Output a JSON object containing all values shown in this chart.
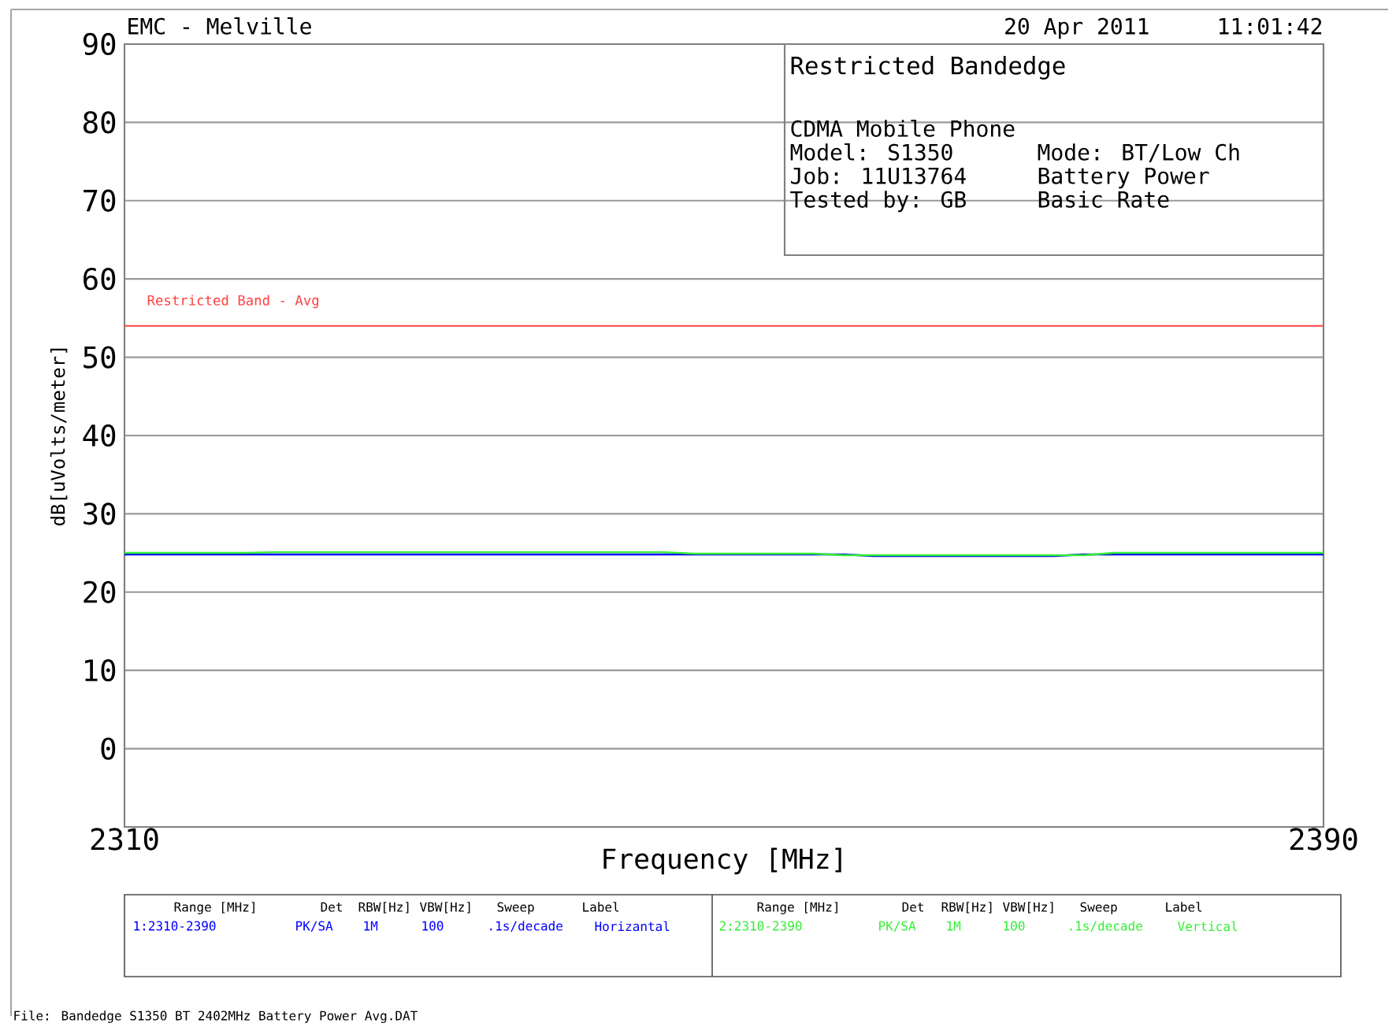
{
  "chart_data": {
    "type": "line",
    "title": "Restricted Bandedge",
    "xlabel": "Frequency [MHz]",
    "ylabel": "dB[uVolts/meter]",
    "x": [
      2310,
      2312,
      2314,
      2316,
      2318,
      2320,
      2322,
      2324,
      2326,
      2328,
      2330,
      2332,
      2334,
      2336,
      2338,
      2340,
      2342,
      2344,
      2346,
      2348,
      2350,
      2352,
      2354,
      2356,
      2358,
      2360,
      2362,
      2364,
      2366,
      2368,
      2370,
      2372,
      2374,
      2376,
      2378,
      2380,
      2382,
      2384,
      2386,
      2388,
      2390
    ],
    "series": [
      {
        "name": "Horizantal",
        "color": "#0000ff",
        "values": [
          24.8,
          24.8,
          24.8,
          24.8,
          24.8,
          24.8,
          24.8,
          24.8,
          24.8,
          24.8,
          24.8,
          24.8,
          24.8,
          24.8,
          24.8,
          24.8,
          24.8,
          24.8,
          24.8,
          24.8,
          24.8,
          24.8,
          24.8,
          24.8,
          24.8,
          24.6,
          24.6,
          24.6,
          24.6,
          24.6,
          24.6,
          24.6,
          24.8,
          24.8,
          24.8,
          24.8,
          24.8,
          24.8,
          24.8,
          24.8,
          24.8
        ]
      },
      {
        "name": "Vertical",
        "color": "#33ee33",
        "values": [
          25.0,
          25.0,
          25.0,
          25.0,
          25.0,
          25.1,
          25.1,
          25.1,
          25.1,
          25.1,
          25.1,
          25.1,
          25.1,
          25.1,
          25.1,
          25.1,
          25.1,
          25.1,
          25.1,
          24.9,
          24.9,
          24.9,
          24.9,
          24.9,
          24.7,
          24.7,
          24.7,
          24.7,
          24.7,
          24.7,
          24.7,
          24.7,
          24.7,
          25.0,
          25.0,
          25.0,
          25.0,
          25.0,
          25.0,
          25.0,
          25.0
        ]
      }
    ],
    "xlim": [
      2310,
      2390
    ],
    "ylim": [
      -10,
      90
    ],
    "xticks": [
      2310,
      2390
    ],
    "yticks": [
      0,
      10,
      20,
      30,
      40,
      50,
      60,
      70,
      80,
      90
    ],
    "grid": "y",
    "marker": "none",
    "line_style": "solid",
    "ref_lines": [
      {
        "axis": "y",
        "value": 54,
        "label": "Restricted Band - Avg",
        "color": "#ff4040"
      }
    ],
    "annotations": [
      "EMC - Melville",
      "20 Apr 2011",
      "11:01:42",
      "CDMA Mobile Phone",
      "Model:  S1350",
      "Mode: BT/Low Ch",
      "Job: 11U13764",
      "Battery Power",
      "Tested by: GB",
      "Basic Rate",
      "Range [MHz]",
      "Det",
      "RBW[Hz]",
      "VBW[Hz]",
      "Sweep",
      "Label",
      "Range [MHz]",
      "Det",
      "RBW[Hz]",
      "VBW[Hz]",
      "Sweep",
      "Label",
      "1:2310-2390",
      "PK/SA",
      "1M",
      "100",
      ".1s/decade",
      "2:2310-2390",
      "PK/SA",
      "1M",
      "100",
      ".1s/decade",
      "File: Bandedge  S1350 BT 2402MHz Battery Power Avg.DAT"
    ]
  }
}
